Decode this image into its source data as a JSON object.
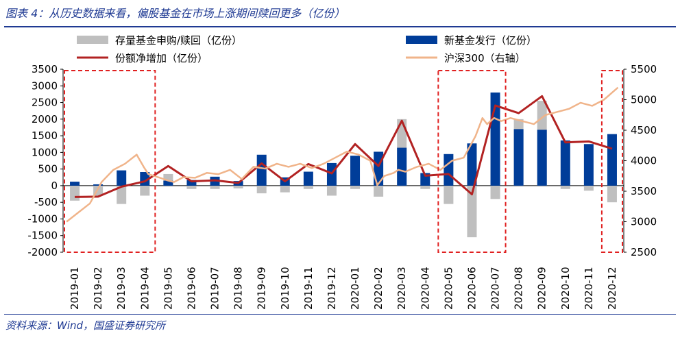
{
  "header": {
    "title": "图表 4：从历史数据来看，偏股基金在市场上涨期间赎回更多（亿份）"
  },
  "footer": {
    "source": "资料来源：Wind，国盛证券研究所"
  },
  "chart_data": {
    "type": "bar",
    "categories": [
      "2019-01",
      "2019-02",
      "2019-03",
      "2019-04",
      "2019-05",
      "2019-06",
      "2019-07",
      "2019-08",
      "2019-09",
      "2019-10",
      "2019-11",
      "2019-12",
      "2020-01",
      "2020-02",
      "2020-03",
      "2020-04",
      "2020-05",
      "2020-06",
      "2020-07",
      "2020-08",
      "2020-09",
      "2020-10",
      "2020-11",
      "2020-12"
    ],
    "ylim": [
      -2000,
      3500
    ],
    "y2lim": [
      2500,
      5500
    ],
    "yticks": [
      3500,
      3000,
      2500,
      2000,
      1500,
      1000,
      500,
      0,
      -500,
      -1000,
      -1500,
      -2000
    ],
    "y2ticks": [
      5500,
      5000,
      4500,
      4000,
      3500,
      3000,
      2500
    ],
    "series": [
      {
        "name": "存量基金申购/赎回（亿份）",
        "kind": "bar",
        "color": "#bfbfbf",
        "values": [
          -450,
          -300,
          -550,
          -300,
          350,
          -100,
          -100,
          -80,
          -230,
          -200,
          -100,
          -300,
          -100,
          -330,
          2000,
          -100,
          -550,
          -1550,
          -400,
          2000,
          2550,
          -100,
          -150,
          -500
        ]
      },
      {
        "name": "新基金发行（亿份）",
        "kind": "bar",
        "color": "#003d99",
        "values": [
          120,
          40,
          460,
          410,
          150,
          170,
          270,
          140,
          930,
          250,
          420,
          680,
          900,
          1020,
          1140,
          380,
          950,
          1270,
          2800,
          1700,
          1680,
          1360,
          1250,
          1550
        ]
      },
      {
        "name": "份额净增加（亿份）",
        "kind": "line",
        "color": "#b22222",
        "values": [
          -340,
          -330,
          -30,
          130,
          590,
          130,
          160,
          80,
          670,
          130,
          650,
          370,
          1250,
          590,
          1950,
          300,
          350,
          -260,
          2410,
          2180,
          2690,
          1300,
          1330,
          1110
        ]
      },
      {
        "name": "沪深300（右轴）",
        "kind": "line",
        "axis": "right",
        "color": "#f0b48a",
        "x": [
          0,
          0.5,
          1,
          1.5,
          2,
          2.5,
          3,
          3.3,
          3.5,
          4,
          4.3,
          4.6,
          5,
          5.5,
          6,
          6.5,
          7,
          7.5,
          8,
          8.5,
          9,
          9.5,
          10,
          10.5,
          11,
          11.5,
          12,
          12.5,
          13,
          13.3,
          13.6,
          14,
          14.2,
          14.5,
          15,
          15.5,
          16,
          16.5,
          17,
          17.5,
          17.8,
          18,
          18.3,
          18.6,
          19,
          19.5,
          20,
          20.5,
          21,
          21.5,
          22,
          22.5,
          23,
          23.3,
          23.6
        ],
        "values": [
          3000,
          3150,
          3300,
          3650,
          3850,
          3950,
          4100,
          3900,
          3780,
          3720,
          3680,
          3650,
          3730,
          3720,
          3800,
          3780,
          3850,
          3700,
          3900,
          3870,
          3950,
          3900,
          3950,
          3880,
          3950,
          4050,
          4150,
          4100,
          4000,
          3600,
          3750,
          3800,
          3850,
          3820,
          3900,
          3950,
          3850,
          4000,
          4050,
          4400,
          4700,
          4600,
          4700,
          4650,
          4700,
          4650,
          4600,
          4750,
          4800,
          4850,
          4950,
          4900,
          5000,
          5100,
          5200
        ]
      }
    ]
  }
}
